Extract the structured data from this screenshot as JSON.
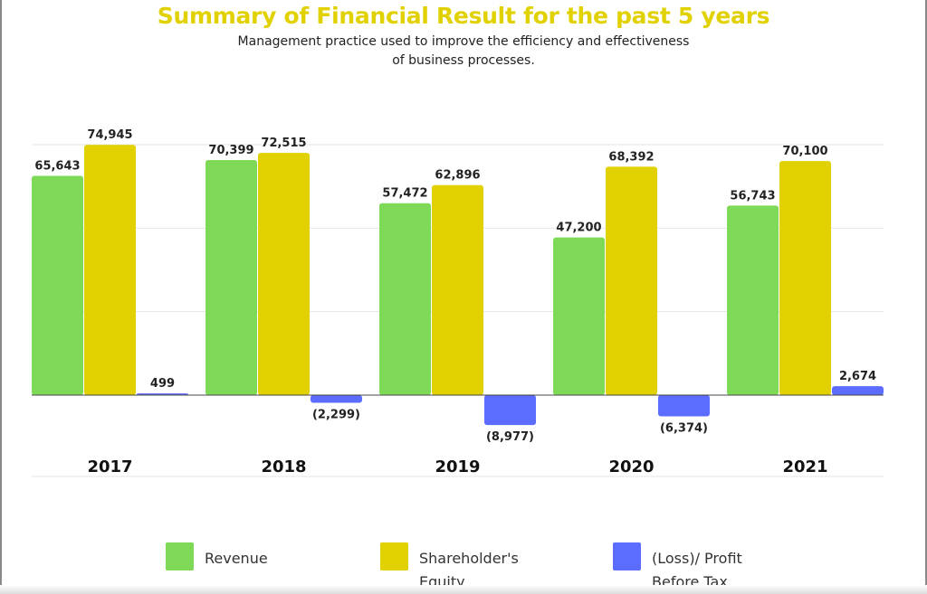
{
  "colors": {
    "revenue": "#7ed957",
    "equity": "#e1d100",
    "profit": "#5b6cff",
    "title": "#e1d100",
    "grid": "#e6e6e6",
    "axis": "#444444"
  },
  "legend": [
    {
      "label_line1": "Revenue",
      "label_line2": "",
      "color": "#7ed957"
    },
    {
      "label_line1": "Shareholder's",
      "label_line2": "Equity",
      "color": "#e1d100"
    },
    {
      "label_line1": "(Loss)/ Profit",
      "label_line2": "Before Tax",
      "color": "#5b6cff"
    }
  ],
  "chart_data": {
    "type": "bar",
    "title": "Summary of Financial Result for the past 5 years",
    "subtitle": "Management practice used to improve the efficiency and effectiveness of business processes.",
    "categories": [
      "2017",
      "2018",
      "2019",
      "2020",
      "2021"
    ],
    "series": [
      {
        "name": "Revenue",
        "color": "#7ed957",
        "values": [
          65643,
          70399,
          57472,
          47200,
          56743
        ],
        "labels": [
          "65,643",
          "70,399",
          "57,472",
          "47,200",
          "56,743"
        ]
      },
      {
        "name": "Shareholder's Equity",
        "color": "#e1d100",
        "values": [
          74945,
          72515,
          62896,
          68392,
          70100
        ],
        "labels": [
          "74,945",
          "72,515",
          "62,896",
          "68,392",
          "70,100"
        ]
      },
      {
        "name": "(Loss)/ Profit Before Tax",
        "color": "#5b6cff",
        "values": [
          499,
          -2299,
          -8977,
          -6374,
          2674
        ],
        "labels": [
          "499",
          "(2,299)",
          "(8,977)",
          "(6,374)",
          "2,674"
        ]
      }
    ],
    "ylim": [
      -25000,
      75000
    ],
    "grid": true,
    "legend_position": "bottom",
    "xlabel": "",
    "ylabel": ""
  }
}
